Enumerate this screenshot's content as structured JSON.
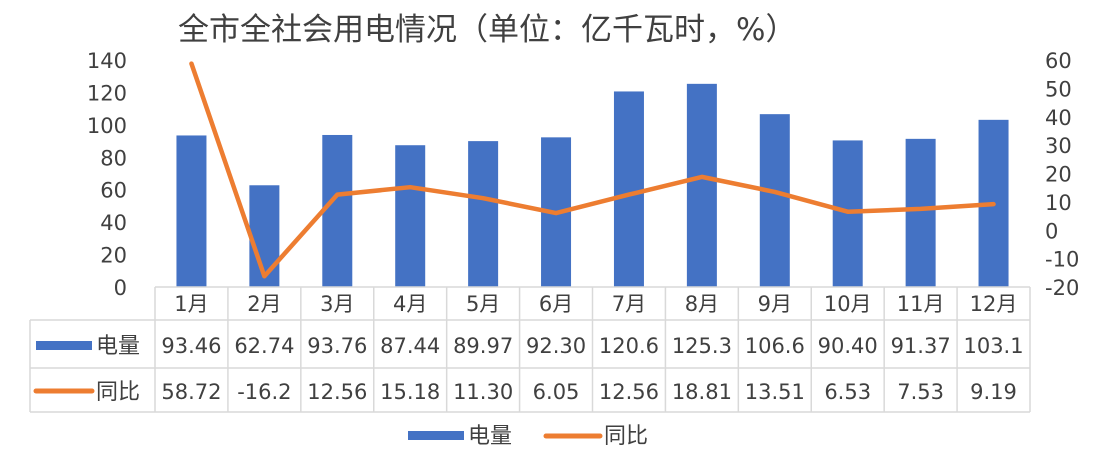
{
  "chart_data": {
    "type": "bar",
    "title": "全市全社会用电情况（单位：亿千瓦时，%）",
    "categories": [
      "1月",
      "2月",
      "3月",
      "4月",
      "5月",
      "6月",
      "7月",
      "8月",
      "9月",
      "10月",
      "11月",
      "12月"
    ],
    "series": [
      {
        "name": "电量",
        "type": "bar",
        "axis": "left",
        "color": "#4472C4",
        "values": [
          93.46,
          62.74,
          93.76,
          87.44,
          89.97,
          92.3,
          120.6,
          125.3,
          106.6,
          90.4,
          91.37,
          103.1
        ],
        "labels": [
          "93.46",
          "62.74",
          "93.76",
          "87.44",
          "89.97",
          "92.30",
          "120.6",
          "125.3",
          "106.6",
          "90.40",
          "91.37",
          "103.1"
        ]
      },
      {
        "name": "同比",
        "type": "line",
        "axis": "right",
        "color": "#ED7D31",
        "values": [
          58.72,
          -16.2,
          12.56,
          15.18,
          11.3,
          6.05,
          12.56,
          18.81,
          13.51,
          6.53,
          7.53,
          9.19
        ],
        "labels": [
          "58.72",
          "-16.2",
          "12.56",
          "15.18",
          "11.30",
          "6.05",
          "12.56",
          "18.81",
          "13.51",
          "6.53",
          "7.53",
          "9.19"
        ]
      }
    ],
    "y_left": {
      "min": 0,
      "max": 140,
      "step": 20,
      "ticks": [
        "0",
        "20",
        "40",
        "60",
        "80",
        "100",
        "120",
        "140"
      ]
    },
    "y_right": {
      "min": -20,
      "max": 60,
      "step": 10,
      "ticks": [
        "-20",
        "-10",
        "0",
        "10",
        "20",
        "30",
        "40",
        "50",
        "60"
      ]
    },
    "grid": false,
    "legend": "bottom",
    "data_table": true
  }
}
